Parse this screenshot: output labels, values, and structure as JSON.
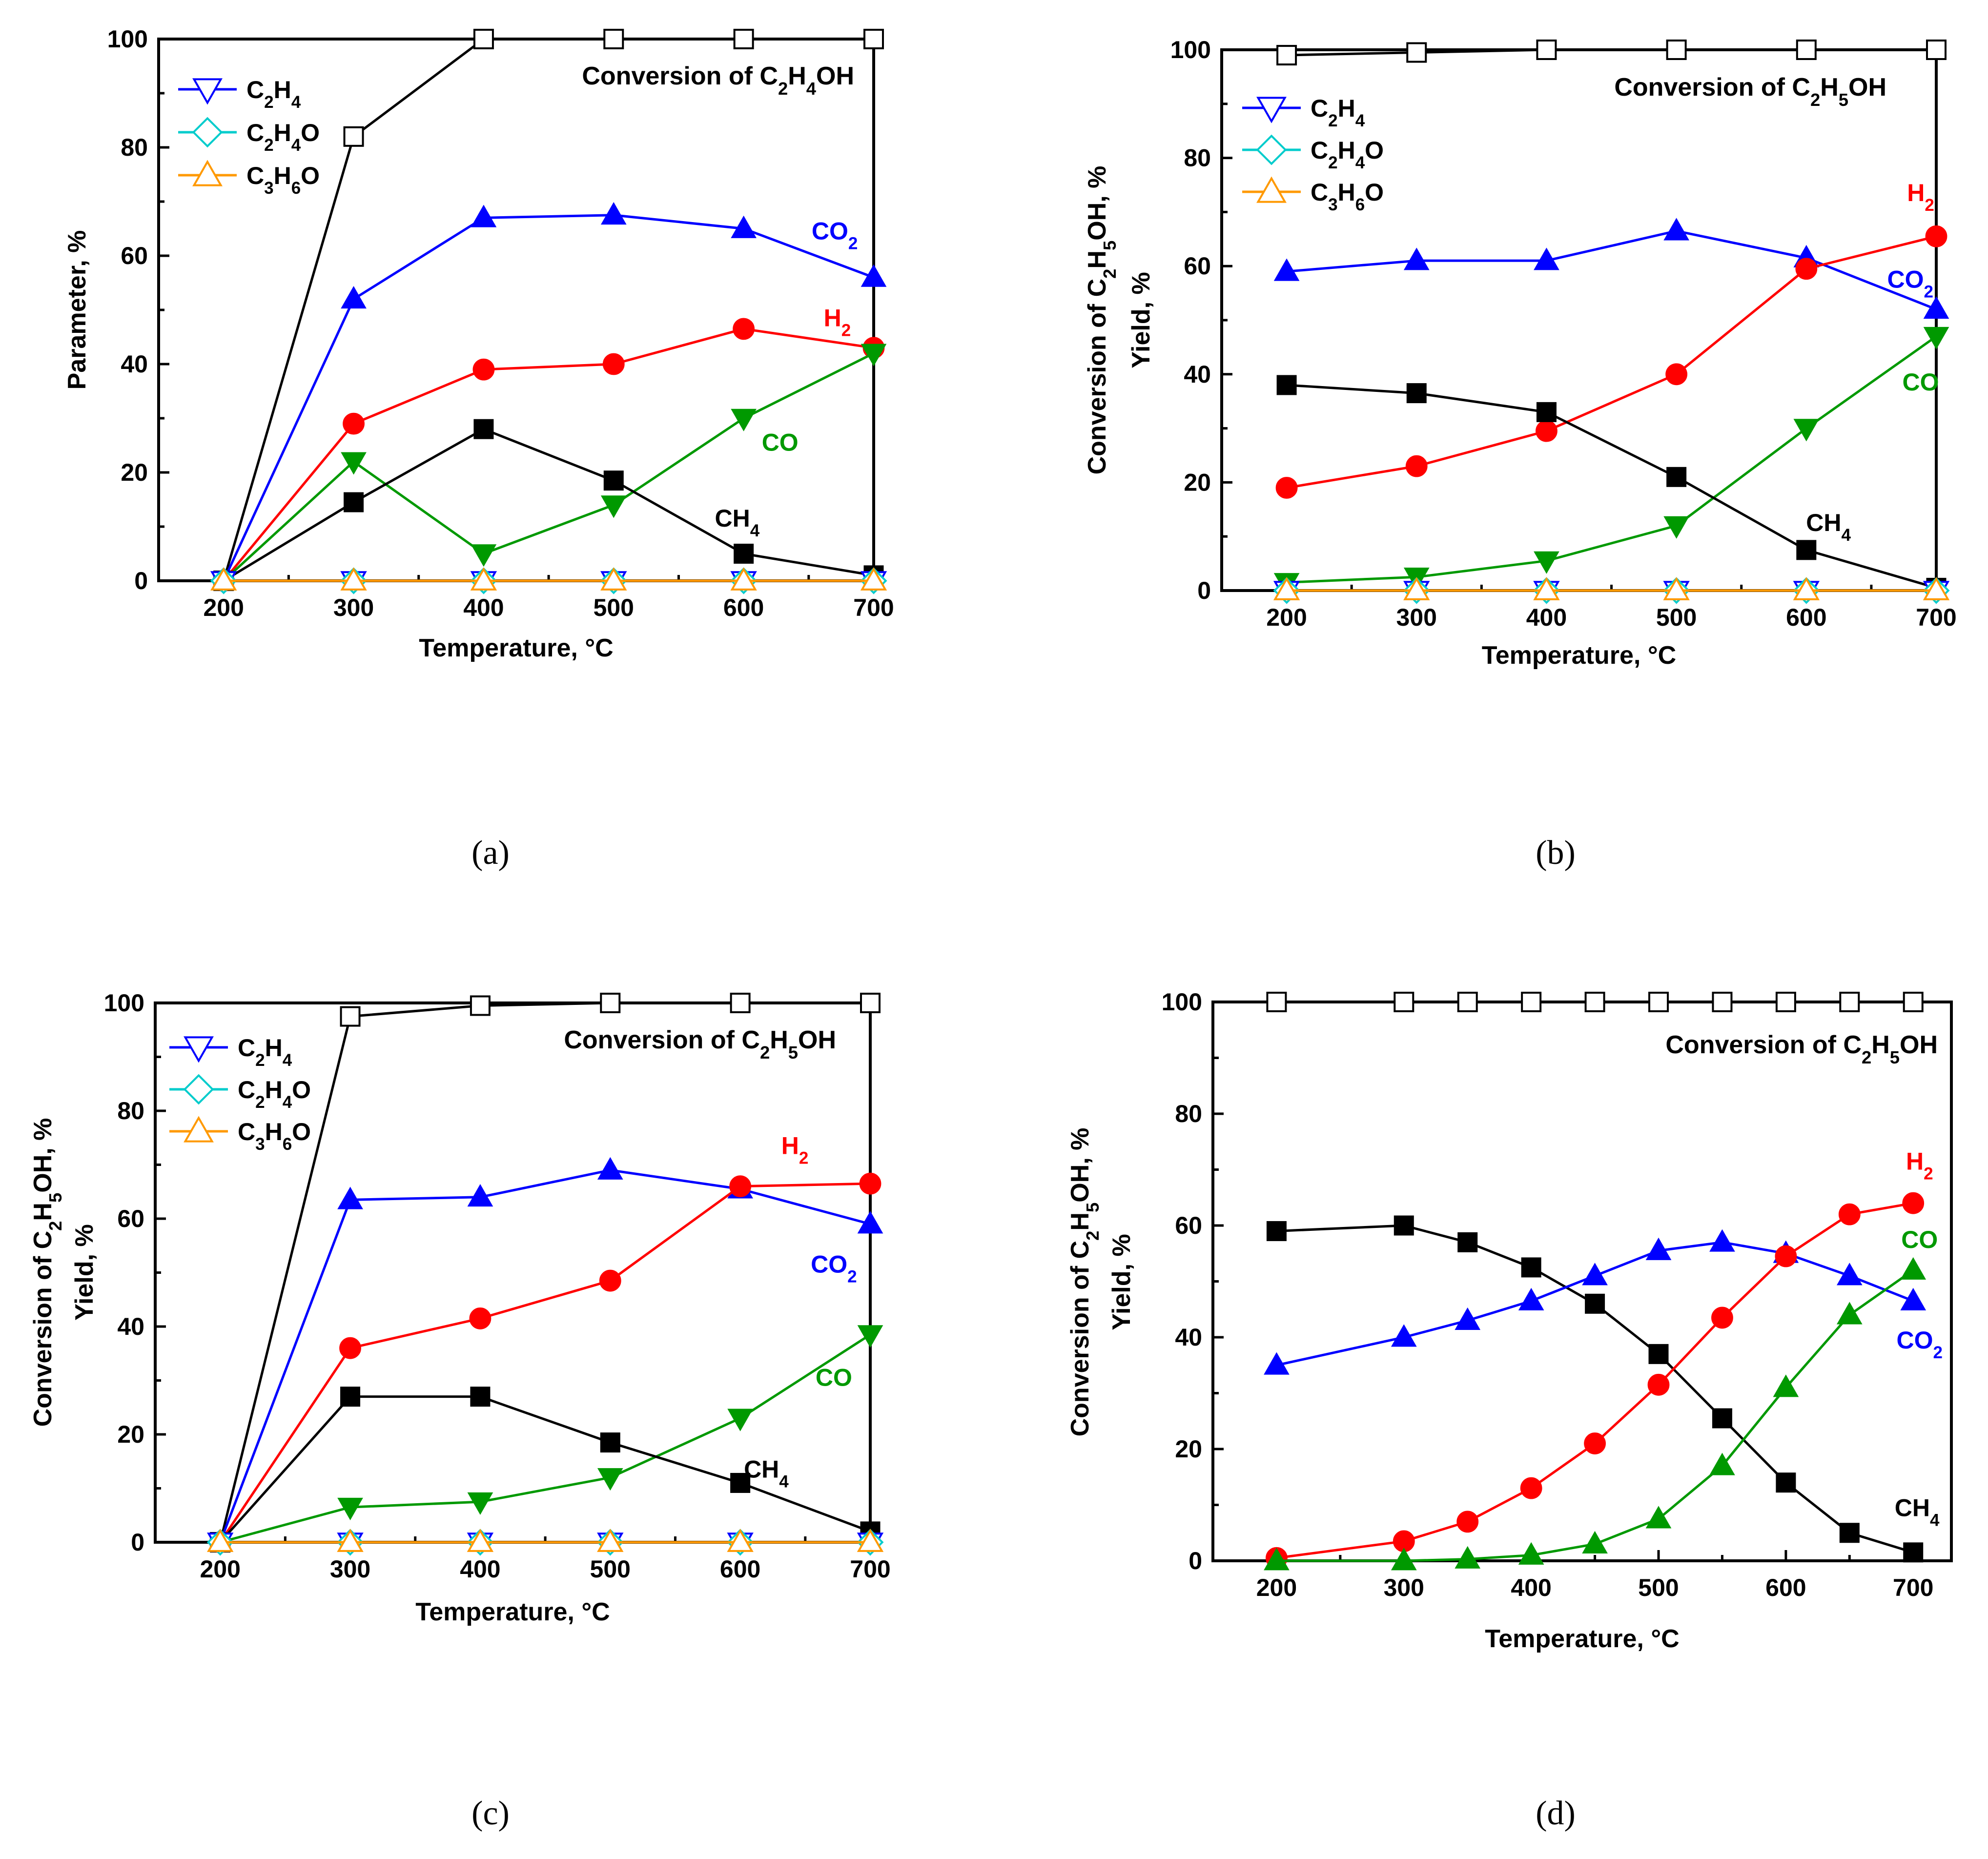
{
  "chart_data": [
    {
      "panel": "(a)",
      "type": "line",
      "x": [
        200,
        300,
        400,
        500,
        600,
        700
      ],
      "xlabel": "Temperature, °C",
      "ylabel": [
        "Parameter, %"
      ],
      "xticks": [
        200,
        300,
        400,
        500,
        600,
        700
      ],
      "xlim": [
        150,
        700
      ],
      "ylim": [
        0,
        100
      ],
      "yticks": [
        0,
        20,
        40,
        60,
        80,
        100
      ],
      "title": "Conversion of C₂H₄OH",
      "legend": [
        "C₂H₄",
        "C₂H₄O",
        "C₃H₆O"
      ],
      "series": [
        {
          "name": "Conversion",
          "color": "#000000",
          "marker": "square-open",
          "x": [
            200,
            300,
            400,
            500,
            600,
            700
          ],
          "values": [
            0,
            82,
            100,
            100,
            100,
            100
          ]
        },
        {
          "name": "CO₂",
          "color": "#0000ff",
          "marker": "triangle-up",
          "x": [
            200,
            300,
            400,
            500,
            600,
            700
          ],
          "values": [
            0,
            52,
            67,
            67.5,
            65,
            56
          ],
          "label": "CO₂",
          "label_at": [
            670,
            63
          ]
        },
        {
          "name": "H₂",
          "color": "#ff0000",
          "marker": "circle",
          "x": [
            200,
            300,
            400,
            500,
            600,
            700
          ],
          "values": [
            0,
            29,
            39,
            40,
            46.5,
            43
          ],
          "label": "H₂",
          "label_at": [
            672,
            47
          ]
        },
        {
          "name": "CO",
          "color": "#009900",
          "marker": "triangle-down",
          "x": [
            200,
            300,
            400,
            500,
            600,
            700
          ],
          "values": [
            0,
            22,
            5,
            14,
            30,
            42
          ],
          "label": "CO",
          "label_at": [
            628,
            24
          ]
        },
        {
          "name": "CH₄",
          "color": "#000000",
          "marker": "square",
          "x": [
            200,
            300,
            400,
            500,
            600,
            700
          ],
          "values": [
            0,
            14.5,
            28,
            18.5,
            5,
            1
          ],
          "label": "CH₄",
          "label_at": [
            595,
            10
          ]
        },
        {
          "name": "C₂H₄",
          "color": "#0000ff",
          "marker": "triangle-down-open",
          "x": [
            200,
            300,
            400,
            500,
            600,
            700
          ],
          "values": [
            0,
            0,
            0,
            0,
            0,
            0
          ]
        },
        {
          "name": "C₂H₄O",
          "color": "#00cccc",
          "marker": "diamond-open",
          "x": [
            200,
            300,
            400,
            500,
            600,
            700
          ],
          "values": [
            0,
            0,
            0,
            0,
            0,
            0
          ]
        },
        {
          "name": "C₃H₆O",
          "color": "#ff9900",
          "marker": "triangle-up-open",
          "x": [
            200,
            300,
            400,
            500,
            600,
            700
          ],
          "values": [
            0,
            0,
            0,
            0,
            0,
            0
          ]
        }
      ]
    },
    {
      "panel": "(b)",
      "type": "line",
      "x": [
        200,
        300,
        400,
        500,
        600,
        700
      ],
      "xlabel": "Temperature, °C",
      "ylabel": [
        "Conversion of C₂H₅OH, %",
        "Yield, %"
      ],
      "xticks": [
        200,
        300,
        400,
        500,
        600,
        700
      ],
      "xlim": [
        150,
        700
      ],
      "ylim": [
        0,
        100
      ],
      "yticks": [
        0,
        20,
        40,
        60,
        80,
        100
      ],
      "title": "Conversion of C₂H₅OH",
      "legend": [
        "C₂H₄",
        "C₂H₄O",
        "C₃H₆O"
      ],
      "series": [
        {
          "name": "Conversion",
          "color": "#000000",
          "marker": "square-open",
          "x": [
            200,
            300,
            400,
            500,
            600,
            700
          ],
          "values": [
            99,
            99.5,
            100,
            100,
            100,
            100
          ]
        },
        {
          "name": "CO₂",
          "color": "#0000ff",
          "marker": "triangle-up",
          "x": [
            200,
            300,
            400,
            500,
            600,
            700
          ],
          "values": [
            59,
            61,
            61,
            66.5,
            61.5,
            52
          ],
          "label": "CO₂",
          "label_at": [
            680,
            56
          ]
        },
        {
          "name": "H₂",
          "color": "#ff0000",
          "marker": "circle",
          "x": [
            200,
            300,
            400,
            500,
            600,
            700
          ],
          "values": [
            19,
            23,
            29.5,
            40,
            59.5,
            65.5
          ],
          "label": "H₂",
          "label_at": [
            688,
            72
          ]
        },
        {
          "name": "CO",
          "color": "#009900",
          "marker": "triangle-down",
          "x": [
            200,
            300,
            400,
            500,
            600,
            700
          ],
          "values": [
            1.5,
            2.5,
            5.5,
            12,
            30,
            47
          ],
          "label": "CO",
          "label_at": [
            688,
            37
          ]
        },
        {
          "name": "CH₄",
          "color": "#000000",
          "marker": "square",
          "x": [
            200,
            300,
            400,
            500,
            600,
            700
          ],
          "values": [
            38,
            36.5,
            33,
            21,
            7.5,
            0.5
          ],
          "label": "CH₄",
          "label_at": [
            617,
            11
          ]
        },
        {
          "name": "C₂H₄",
          "color": "#0000ff",
          "marker": "triangle-down-open",
          "x": [
            200,
            300,
            400,
            500,
            600,
            700
          ],
          "values": [
            0,
            0,
            0,
            0,
            0,
            0
          ]
        },
        {
          "name": "C₂H₄O",
          "color": "#00cccc",
          "marker": "diamond-open",
          "x": [
            200,
            300,
            400,
            500,
            600,
            700
          ],
          "values": [
            0,
            0,
            0,
            0,
            0,
            0
          ]
        },
        {
          "name": "C₃H₆O",
          "color": "#ff9900",
          "marker": "triangle-up-open",
          "x": [
            200,
            300,
            400,
            500,
            600,
            700
          ],
          "values": [
            0,
            0,
            0,
            0,
            0,
            0
          ]
        }
      ]
    },
    {
      "panel": "(c)",
      "type": "line",
      "x": [
        200,
        300,
        400,
        500,
        600,
        700
      ],
      "xlabel": "Temperature, °C",
      "ylabel": [
        "Conversion of C₂H₅OH, %",
        "Yield, %"
      ],
      "xticks": [
        200,
        300,
        400,
        500,
        600,
        700
      ],
      "xlim": [
        150,
        700
      ],
      "ylim": [
        0,
        100
      ],
      "yticks": [
        0,
        20,
        40,
        60,
        80,
        100
      ],
      "title": "Conversion of C₂H₅OH",
      "legend": [
        "C₂H₄",
        "C₂H₄O",
        "C₃H₆O"
      ],
      "series": [
        {
          "name": "Conversion",
          "color": "#000000",
          "marker": "square-open",
          "x": [
            200,
            300,
            400,
            500,
            600,
            700
          ],
          "values": [
            0,
            97.5,
            99.5,
            100,
            100,
            100
          ]
        },
        {
          "name": "CO₂",
          "color": "#0000ff",
          "marker": "triangle-up",
          "x": [
            200,
            300,
            400,
            500,
            600,
            700
          ],
          "values": [
            0,
            63.5,
            64,
            69,
            65.5,
            59
          ],
          "label": "CO₂",
          "label_at": [
            672,
            50
          ]
        },
        {
          "name": "H₂",
          "color": "#ff0000",
          "marker": "circle",
          "x": [
            200,
            300,
            400,
            500,
            600,
            700
          ],
          "values": [
            0,
            36,
            41.5,
            48.5,
            66,
            66.5
          ],
          "label": "H₂",
          "label_at": [
            642,
            72
          ]
        },
        {
          "name": "CO",
          "color": "#009900",
          "marker": "triangle-down",
          "x": [
            200,
            300,
            400,
            500,
            600,
            700
          ],
          "values": [
            0,
            6.5,
            7.5,
            12,
            23,
            38.5
          ],
          "label": "CO",
          "label_at": [
            672,
            29
          ]
        },
        {
          "name": "CH₄",
          "color": "#000000",
          "marker": "square",
          "x": [
            200,
            300,
            400,
            500,
            600,
            700
          ],
          "values": [
            0,
            27,
            27,
            18.5,
            11,
            2
          ],
          "label": "CH₄",
          "label_at": [
            620,
            12
          ]
        },
        {
          "name": "C₂H₄",
          "color": "#0000ff",
          "marker": "triangle-down-open",
          "x": [
            200,
            300,
            400,
            500,
            600,
            700
          ],
          "values": [
            0,
            0,
            0,
            0,
            0,
            0
          ]
        },
        {
          "name": "C₂H₄O",
          "color": "#00cccc",
          "marker": "diamond-open",
          "x": [
            200,
            300,
            400,
            500,
            600,
            700
          ],
          "values": [
            0,
            0,
            0,
            0,
            0,
            0
          ]
        },
        {
          "name": "C₃H₆O",
          "color": "#ff9900",
          "marker": "triangle-up-open",
          "x": [
            200,
            300,
            400,
            500,
            600,
            700
          ],
          "values": [
            0,
            0,
            0,
            0,
            0,
            0
          ]
        }
      ]
    },
    {
      "panel": "(d)",
      "type": "line",
      "x": [
        200,
        300,
        350,
        400,
        450,
        500,
        550,
        600,
        650,
        700
      ],
      "xlabel": "Temperature, °C",
      "ylabel": [
        "Conversion of C₂H₅OH, %",
        "Yield, %"
      ],
      "xticks": [
        200,
        300,
        400,
        500,
        600,
        700
      ],
      "xlim": [
        150,
        730
      ],
      "ylim": [
        0,
        100
      ],
      "yticks": [
        0,
        20,
        40,
        60,
        80,
        100
      ],
      "title": "Conversion of C₂H₅OH",
      "legend": [],
      "series": [
        {
          "name": "Conversion",
          "color": "#000000",
          "marker": "square-open",
          "x": [
            200,
            300,
            350,
            400,
            450,
            500,
            550,
            600,
            650,
            700
          ],
          "values": [
            100,
            100,
            100,
            100,
            100,
            100,
            100,
            100,
            100,
            100
          ]
        },
        {
          "name": "CH₄",
          "color": "#000000",
          "marker": "square",
          "x": [
            200,
            300,
            350,
            400,
            450,
            500,
            550,
            600,
            650,
            700
          ],
          "values": [
            59,
            60,
            57,
            52.5,
            46,
            37,
            25.5,
            14,
            5,
            1.5
          ],
          "label": "CH₄",
          "label_at": [
            703,
            8
          ]
        },
        {
          "name": "CO₂",
          "color": "#0000ff",
          "marker": "triangle-up",
          "x": [
            200,
            300,
            350,
            400,
            450,
            500,
            550,
            600,
            650,
            700
          ],
          "values": [
            35,
            40,
            43,
            46.5,
            51,
            55.5,
            57,
            55,
            51,
            46.5
          ],
          "label": "CO₂",
          "label_at": [
            705,
            38
          ]
        },
        {
          "name": "H₂",
          "color": "#ff0000",
          "marker": "circle",
          "x": [
            200,
            300,
            350,
            400,
            450,
            500,
            550,
            600,
            650,
            700
          ],
          "values": [
            0.5,
            3.5,
            7,
            13,
            21,
            31.5,
            43.5,
            54.5,
            62,
            64
          ],
          "label": "H₂",
          "label_at": [
            705,
            70
          ]
        },
        {
          "name": "CO",
          "color": "#009900",
          "marker": "triangle-up",
          "x": [
            200,
            300,
            350,
            400,
            450,
            500,
            550,
            600,
            650,
            700
          ],
          "values": [
            0,
            0,
            0.3,
            1,
            3,
            7.5,
            17,
            31,
            44,
            52
          ],
          "label": "CO",
          "label_at": [
            705,
            56
          ]
        }
      ]
    }
  ]
}
